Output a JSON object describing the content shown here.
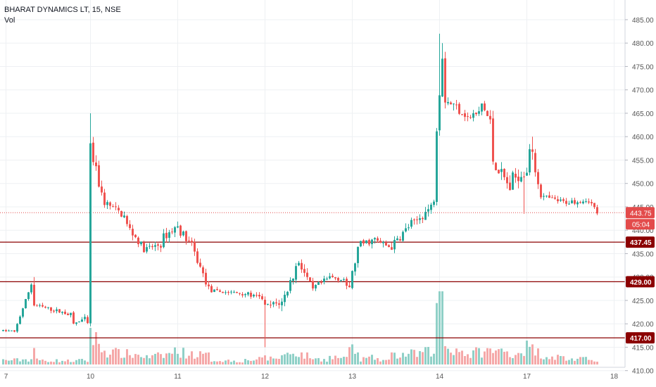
{
  "header": {
    "symbol": "BHARAT DYNAMICS LT, 15, NSE",
    "volume_label": "Vol"
  },
  "colors": {
    "up": "#26a69a",
    "down": "#ef5350",
    "up_vol": "#8fd0c7",
    "down_vol": "#f5a8a8",
    "grid": "#eef0f3",
    "hline": "#8b0000",
    "price_line": "#e34b4b",
    "axis_text": "#555555"
  },
  "chart_data": {
    "type": "candlestick",
    "y_range": [
      408,
      488
    ],
    "y_ticks": [
      "485.00",
      "480.00",
      "475.00",
      "470.00",
      "465.00",
      "460.00",
      "455.00",
      "450.00",
      "445.00",
      "440.00",
      "435.00",
      "430.00",
      "425.00",
      "420.00",
      "415.00",
      "410.00"
    ],
    "x_ticks": [
      {
        "label": "7",
        "pos": 1
      },
      {
        "label": "10",
        "pos": 31
      },
      {
        "label": "11",
        "pos": 62
      },
      {
        "label": "12",
        "pos": 93
      },
      {
        "label": "13",
        "pos": 124
      },
      {
        "label": "14",
        "pos": 155
      },
      {
        "label": "17",
        "pos": 186
      },
      {
        "label": "18",
        "pos": 217
      }
    ],
    "horizontal_levels": [
      {
        "price": 437.45,
        "label": "437.45"
      },
      {
        "price": 429.0,
        "label": "429.00"
      },
      {
        "price": 417.0,
        "label": "417.00"
      }
    ],
    "last_price": {
      "price": 443.75,
      "label": "443.75",
      "countdown": "05:04"
    },
    "segments": [
      [
        0,
        418.5,
        418.5,
        0.3,
        0.3,
        0.05,
        0.05
      ],
      [
        4,
        418.2,
        428.5,
        0.3,
        0.5,
        0.05,
        0.06
      ],
      [
        11,
        424.0,
        422.0,
        0.6,
        0.6,
        0.05,
        0.04
      ],
      [
        25,
        420.0,
        421.0,
        0.5,
        0.7,
        0.04,
        0.05
      ],
      [
        30,
        420.0,
        418.5,
        0.5,
        0.4,
        0.04,
        0.04
      ],
      [
        31,
        457.5,
        447.5,
        2.0,
        1.5,
        0.35,
        0.2
      ],
      [
        36,
        446.0,
        443.0,
        1.3,
        1.0,
        0.15,
        0.12
      ],
      [
        44,
        441.0,
        436.0,
        1.3,
        1.0,
        0.12,
        0.1
      ],
      [
        51,
        436.0,
        437.0,
        1.0,
        1.2,
        0.08,
        0.1
      ],
      [
        57,
        438.5,
        440.5,
        1.3,
        1.2,
        0.1,
        0.15
      ],
      [
        62,
        440.5,
        437.5,
        1.3,
        1.3,
        0.15,
        0.12
      ],
      [
        67,
        436.5,
        427.5,
        1.4,
        1.0,
        0.12,
        0.1
      ],
      [
        74,
        427.0,
        426.5,
        0.6,
        0.6,
        0.05,
        0.04
      ],
      [
        86,
        426.5,
        425.5,
        0.6,
        0.8,
        0.05,
        0.06
      ],
      [
        92,
        425.5,
        423.5,
        0.8,
        1.2,
        0.06,
        0.08
      ],
      [
        93,
        423.5,
        424.5,
        1.2,
        1.2,
        0.06,
        0.08
      ],
      [
        99,
        424.5,
        432.0,
        1.5,
        1.8,
        0.1,
        0.15
      ],
      [
        105,
        433.5,
        427.0,
        1.5,
        1.0,
        0.12,
        0.08
      ],
      [
        111,
        428.0,
        429.5,
        0.8,
        0.8,
        0.06,
        0.06
      ],
      [
        116,
        430.0,
        429.5,
        0.8,
        0.8,
        0.08,
        0.08
      ],
      [
        122,
        427.5,
        428.0,
        1.0,
        1.0,
        0.06,
        0.06
      ],
      [
        123,
        428.0,
        436.0,
        1.3,
        1.3,
        0.25,
        0.1
      ],
      [
        127,
        437.0,
        438.0,
        1.1,
        1.1,
        0.06,
        0.08
      ],
      [
        133,
        437.5,
        436.5,
        1.0,
        1.0,
        0.05,
        0.05
      ],
      [
        138,
        436.5,
        441.5,
        1.3,
        1.4,
        0.1,
        0.12
      ],
      [
        146,
        441.5,
        445.0,
        1.2,
        1.3,
        0.12,
        0.15
      ],
      [
        153,
        447.0,
        462.0,
        1.5,
        2.0,
        0.15,
        0.25
      ],
      [
        154,
        462.5,
        478.0,
        2.0,
        2.5,
        0.55,
        0.5
      ],
      [
        157,
        468.0,
        465.0,
        1.6,
        1.6,
        0.2,
        0.15
      ],
      [
        165,
        464.0,
        465.0,
        1.2,
        1.3,
        0.1,
        0.15
      ],
      [
        170,
        467.0,
        463.0,
        1.6,
        1.6,
        0.15,
        0.15
      ],
      [
        174,
        455.0,
        449.0,
        2.0,
        2.0,
        0.15,
        0.15
      ],
      [
        181,
        451.0,
        453.0,
        2.0,
        2.0,
        0.1,
        0.2
      ],
      [
        187,
        458.0,
        448.0,
        2.0,
        1.8,
        0.2,
        0.12
      ],
      [
        192,
        447.0,
        446.0,
        1.0,
        0.8,
        0.1,
        0.08
      ],
      [
        200,
        446.0,
        446.5,
        0.8,
        0.8,
        0.06,
        0.06
      ],
      [
        208,
        446.5,
        443.75,
        0.9,
        0.8,
        0.06,
        0.06
      ]
    ]
  }
}
